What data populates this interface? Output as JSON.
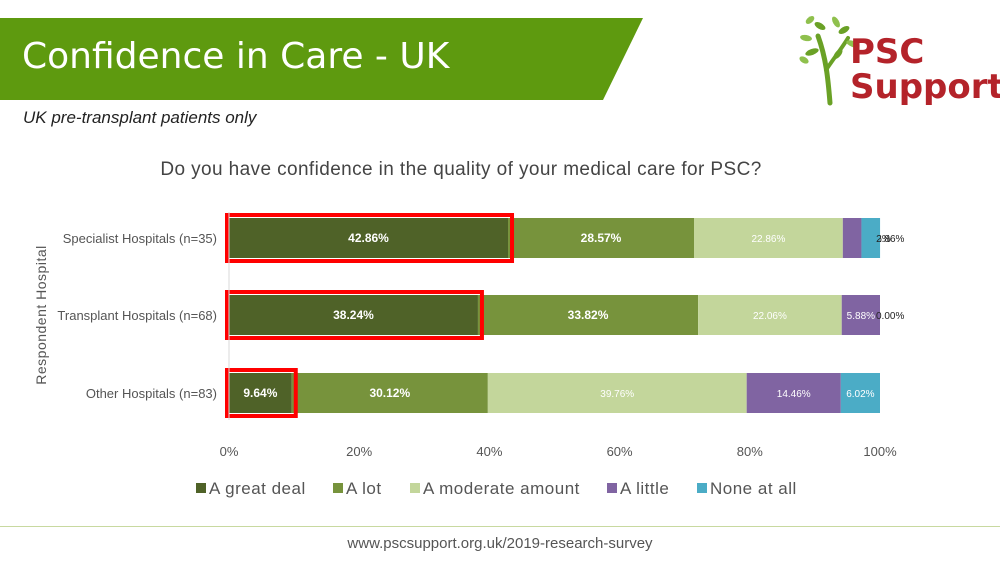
{
  "header": {
    "title": "Confidence in Care - UK",
    "subtitle": "UK pre-transplant patients only",
    "logo_line1": "PSC",
    "logo_line2": "Support"
  },
  "footer": {
    "url": "www.pscsupport.org.uk/2019-research-survey"
  },
  "colors": {
    "banner": "#5e9a0f",
    "great_deal": "#4f6228",
    "a_lot": "#77933c",
    "moderate": "#c3d69b",
    "little": "#8064a2",
    "none": "#4bacc6",
    "highlight": "#ff0000",
    "logo_text": "#b4232a"
  },
  "chart_data": {
    "type": "bar",
    "orientation": "horizontal",
    "stacked": "percent",
    "title": "Do you have confidence in the quality of your medical care for PSC?",
    "ylabel": "Respondent Hospital",
    "xlabel": "",
    "categories": [
      "Specialist Hospitals (n=35)",
      "Transplant Hospitals (n=68)",
      "Other Hospitals (n=83)"
    ],
    "series": [
      {
        "name": "A great deal",
        "values": [
          42.86,
          38.24,
          9.64
        ],
        "labels": [
          "42.86%",
          "38.24%",
          "9.64%"
        ],
        "highlighted": true
      },
      {
        "name": "A lot",
        "values": [
          28.57,
          33.82,
          30.12
        ],
        "labels": [
          "28.57%",
          "33.82%",
          "30.12%"
        ]
      },
      {
        "name": "A moderate amount",
        "values": [
          22.86,
          22.06,
          39.76
        ],
        "labels": [
          "22.86%",
          "22.06%",
          "39.76%"
        ]
      },
      {
        "name": "A little",
        "values": [
          2.86,
          5.88,
          14.46
        ],
        "labels": [
          "2.86%",
          "5.88%",
          "14.46%"
        ]
      },
      {
        "name": "None at all",
        "values": [
          2.86,
          0.0,
          6.02
        ],
        "labels": [
          "2.86%",
          "0.00%",
          "6.02%"
        ]
      }
    ],
    "xlim": [
      0,
      100
    ],
    "x_ticks": [
      "0%",
      "20%",
      "40%",
      "60%",
      "80%",
      "100%"
    ],
    "grid": false,
    "legend": "bottom"
  }
}
